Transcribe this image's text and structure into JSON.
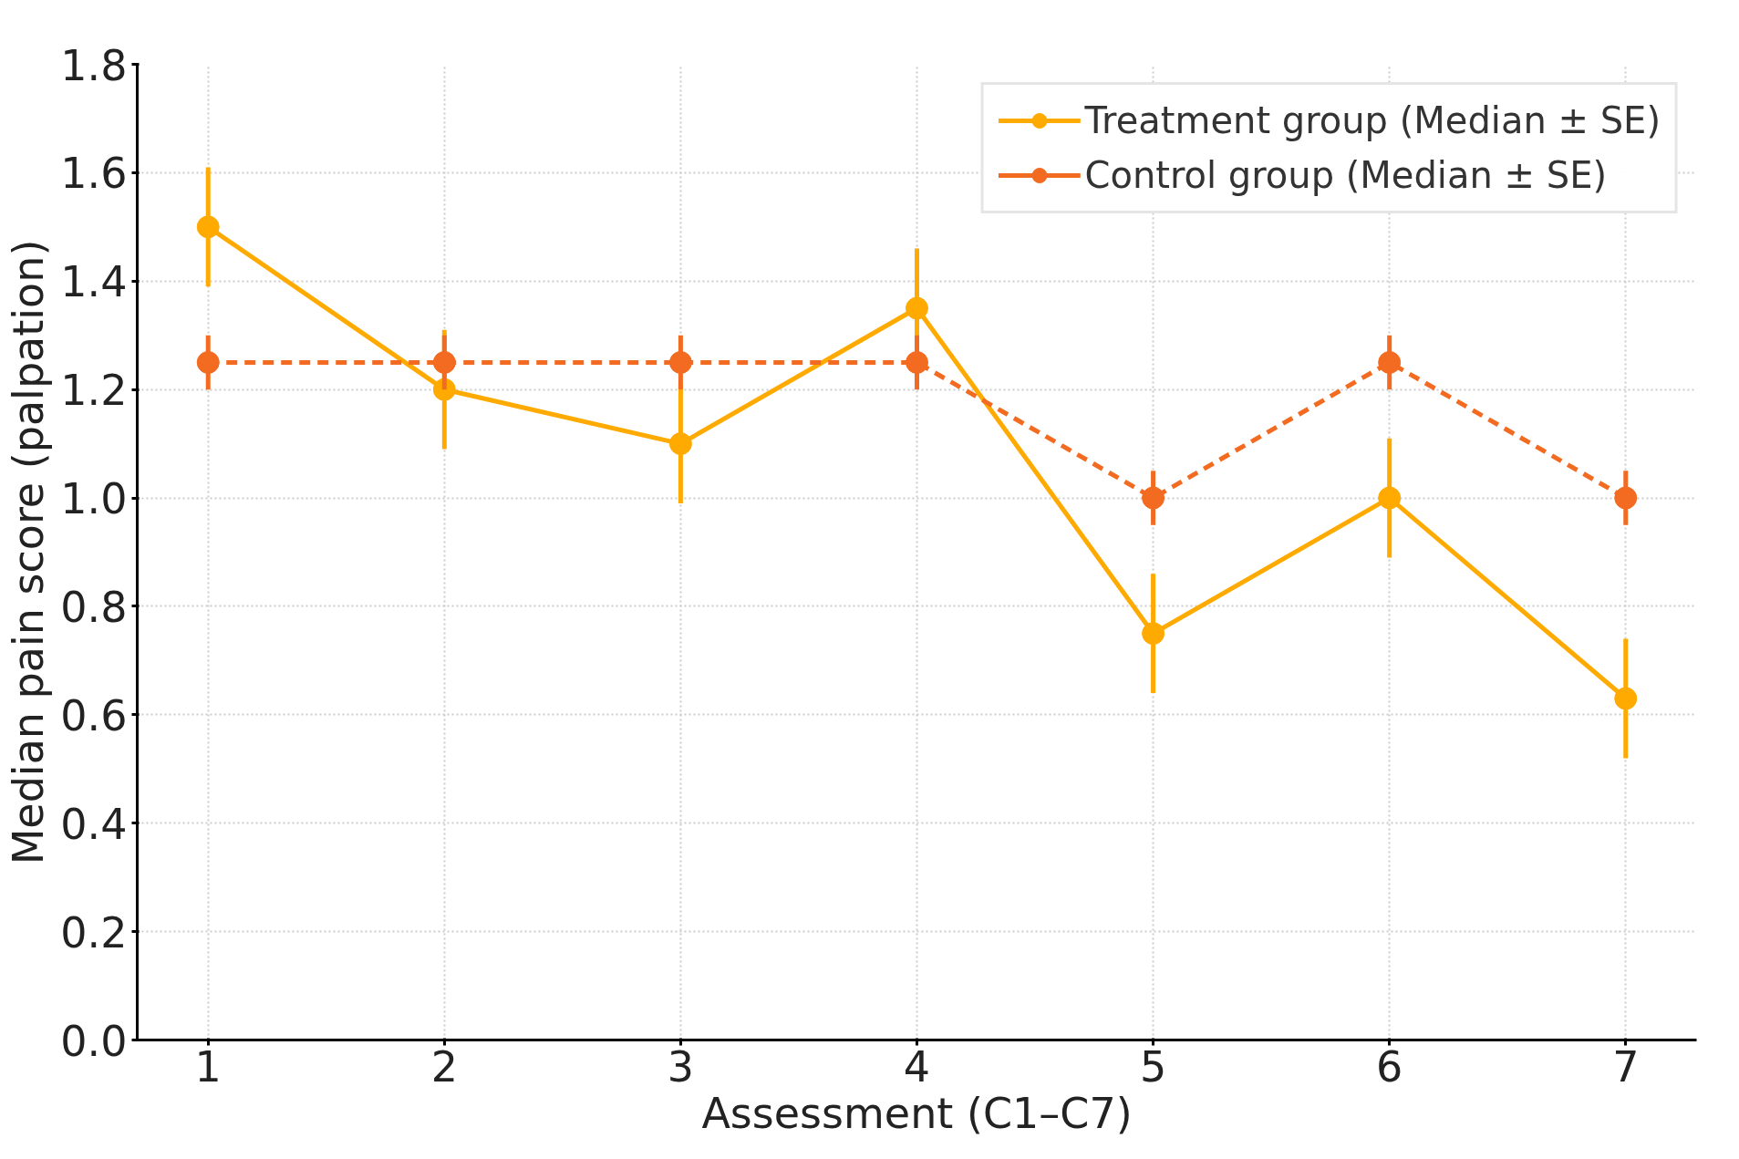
{
  "chart_data": {
    "type": "line",
    "xlabel": "Assessment (C1–C7)",
    "ylabel": "Median pain score (palpation)",
    "x": [
      1,
      2,
      3,
      4,
      5,
      6,
      7
    ],
    "series": [
      {
        "name": "Treatment group (Median ± SE)",
        "color": "#ffaa00",
        "values": [
          1.5,
          1.2,
          1.1,
          1.35,
          0.75,
          1.0,
          0.63
        ],
        "errors": [
          0.11,
          0.11,
          0.11,
          0.11,
          0.11,
          0.11,
          0.11
        ],
        "line_style": "solid"
      },
      {
        "name": "Control group (Median ± SE)",
        "color": "#f26b21",
        "values": [
          1.25,
          1.25,
          1.25,
          1.25,
          1.0,
          1.25,
          1.0
        ],
        "errors": [
          0.05,
          0.05,
          0.05,
          0.05,
          0.05,
          0.05,
          0.05
        ],
        "line_style": "dashed"
      }
    ],
    "xlim": [
      0.7,
      7.3
    ],
    "ylim": [
      0,
      1.8
    ],
    "xticks": [
      1,
      2,
      3,
      4,
      5,
      6,
      7
    ],
    "yticks": [
      {
        "value": 0,
        "label": "0.0"
      },
      0.2,
      0.4,
      0.6,
      0.8,
      {
        "value": 1,
        "label": "1.0"
      },
      1.2,
      1.4,
      1.6,
      1.8
    ],
    "grid": true,
    "legend": "top right",
    "marker": "circle"
  }
}
